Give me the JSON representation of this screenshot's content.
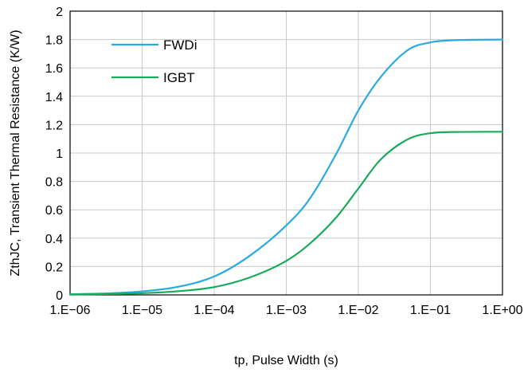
{
  "chart_data": {
    "type": "line",
    "x_scale": "log",
    "xlabel": "tp, Pulse Width (s)",
    "ylabel": "ZthJC, Transient Thermal Resistance (K/W)",
    "xlim": [
      1e-06,
      1
    ],
    "ylim": [
      0,
      2
    ],
    "x_ticks": [
      1e-06,
      1e-05,
      0.0001,
      0.001,
      0.01,
      0.1,
      1
    ],
    "x_tick_labels": [
      "1.E−06",
      "1.E−05",
      "1.E−04",
      "1.E−03",
      "1.E−02",
      "1.E−01",
      "1.E+00"
    ],
    "y_ticks": [
      0,
      0.2,
      0.4,
      0.6,
      0.8,
      1,
      1.2,
      1.4,
      1.6,
      1.8,
      2
    ],
    "y_tick_labels": [
      "0",
      "0.2",
      "0.4",
      "0.6",
      "0.8",
      "1",
      "1.2",
      "1.4",
      "1.6",
      "1.8",
      "2"
    ],
    "grid": true,
    "legend_position": "top-left",
    "series": [
      {
        "name": "FWDi",
        "color": "#29abe2",
        "x": [
          1e-06,
          3e-06,
          1e-05,
          3e-05,
          0.0001,
          0.0003,
          0.001,
          0.002,
          0.005,
          0.01,
          0.02,
          0.05,
          0.1,
          0.2,
          1
        ],
        "y": [
          0.005,
          0.01,
          0.025,
          0.055,
          0.13,
          0.27,
          0.49,
          0.66,
          1.0,
          1.3,
          1.53,
          1.73,
          1.78,
          1.795,
          1.8
        ]
      },
      {
        "name": "IGBT",
        "color": "#1aab5a",
        "x": [
          1e-06,
          3e-06,
          1e-05,
          3e-05,
          0.0001,
          0.0003,
          0.001,
          0.002,
          0.005,
          0.01,
          0.02,
          0.05,
          0.1,
          0.2,
          1
        ],
        "y": [
          0.003,
          0.006,
          0.012,
          0.025,
          0.055,
          0.12,
          0.24,
          0.35,
          0.55,
          0.75,
          0.95,
          1.1,
          1.14,
          1.148,
          1.15
        ]
      }
    ]
  }
}
